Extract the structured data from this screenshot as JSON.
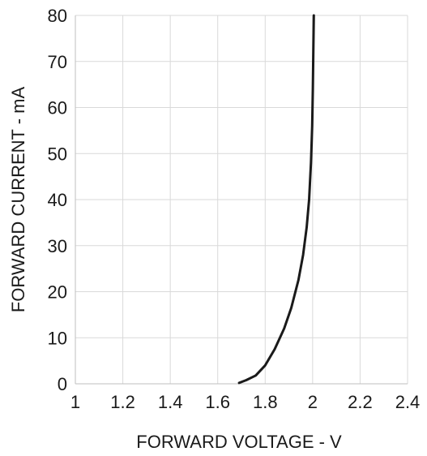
{
  "chart_data": {
    "type": "line",
    "xlabel": "FORWARD VOLTAGE - V",
    "ylabel": "FORWARD CURRENT - mA",
    "xlim": [
      1,
      2.4
    ],
    "ylim": [
      0,
      80
    ],
    "x_ticks": [
      "1",
      "1.2",
      "1.4",
      "1.6",
      "1.8",
      "2",
      "2.2",
      "2.4"
    ],
    "y_ticks": [
      "0",
      "10",
      "20",
      "30",
      "40",
      "50",
      "60",
      "70",
      "80"
    ],
    "grid": true,
    "legend": "none",
    "series": [
      {
        "color": "#1a1a1a",
        "points": [
          [
            1.69,
            0.2
          ],
          [
            1.72,
            0.8
          ],
          [
            1.76,
            1.8
          ],
          [
            1.8,
            4.0
          ],
          [
            1.84,
            7.5
          ],
          [
            1.88,
            12.0
          ],
          [
            1.91,
            16.5
          ],
          [
            1.94,
            22.5
          ],
          [
            1.96,
            28.0
          ],
          [
            1.975,
            34.0
          ],
          [
            1.985,
            40.0
          ],
          [
            1.993,
            48.0
          ],
          [
            1.998,
            56.0
          ],
          [
            2.001,
            64.0
          ],
          [
            2.003,
            72.0
          ],
          [
            2.005,
            80.0
          ]
        ]
      }
    ]
  }
}
